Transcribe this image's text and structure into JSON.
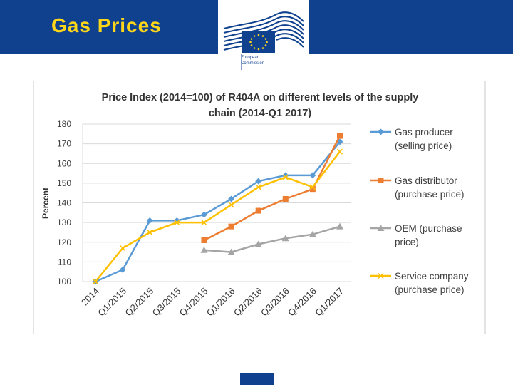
{
  "header": {
    "title": "Gas Prices",
    "logo_text_line1": "European",
    "logo_text_line2": "Commission",
    "bg_color": "#10418f",
    "title_color": "#ffd618"
  },
  "chart_data": {
    "type": "line",
    "title_line1": "Price Index (2014=100) of R404A on different levels of the supply",
    "title_line2": "chain (2014-Q1 2017)",
    "xlabel": "",
    "ylabel": "Percent",
    "ylim": [
      100,
      180
    ],
    "yticks": [
      100,
      110,
      120,
      130,
      140,
      150,
      160,
      170,
      180
    ],
    "categories": [
      "2014",
      "Q1/2015",
      "Q2/2015",
      "Q3/2015",
      "Q4/2015",
      "Q1/2016",
      "Q2/2016",
      "Q3/2016",
      "Q4/2016",
      "Q1/2017"
    ],
    "grid": true,
    "legend_position": "right",
    "series": [
      {
        "name": "Gas producer (selling price)",
        "legend_line1": "Gas producer",
        "legend_line2": "(selling price)",
        "color": "#5b9bd5",
        "marker": "diamond",
        "values": [
          100,
          106,
          131,
          131,
          134,
          142,
          151,
          154,
          154,
          171
        ]
      },
      {
        "name": "Gas distributor (purchase price)",
        "legend_line1": "Gas distributor",
        "legend_line2": "(purchase price)",
        "color": "#ed7d31",
        "marker": "square",
        "values": [
          null,
          null,
          null,
          null,
          121,
          128,
          136,
          142,
          147,
          174
        ]
      },
      {
        "name": "OEM (purchase price)",
        "legend_line1": "OEM (purchase",
        "legend_line2": "price)",
        "color": "#a5a5a5",
        "marker": "triangle",
        "values": [
          null,
          null,
          null,
          null,
          116,
          115,
          119,
          122,
          124,
          128
        ]
      },
      {
        "name": "Service company (purchase price)",
        "legend_line1": "Service company",
        "legend_line2": "(purchase price)",
        "color": "#ffc000",
        "marker": "x",
        "values": [
          100,
          117,
          125,
          130,
          130,
          139,
          148,
          153,
          148,
          166
        ]
      }
    ]
  }
}
